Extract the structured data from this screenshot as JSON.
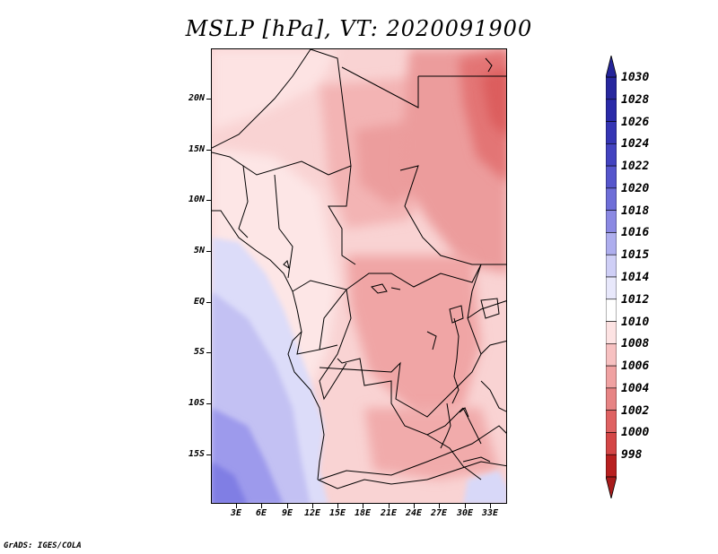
{
  "title": "MSLP [hPa], VT: 2020091900",
  "credit": "GrADS: IGES/COLA",
  "y_axis": [
    {
      "label": "20N",
      "lat": 20
    },
    {
      "label": "15N",
      "lat": 15
    },
    {
      "label": "10N",
      "lat": 10
    },
    {
      "label": "5N",
      "lat": 5
    },
    {
      "label": "EQ",
      "lat": 0
    },
    {
      "label": "5S",
      "lat": -5
    },
    {
      "label": "10S",
      "lat": -10
    },
    {
      "label": "15S",
      "lat": -15
    }
  ],
  "x_axis": [
    {
      "label": "3E",
      "lon": 3
    },
    {
      "label": "6E",
      "lon": 6
    },
    {
      "label": "9E",
      "lon": 9
    },
    {
      "label": "12E",
      "lon": 12
    },
    {
      "label": "15E",
      "lon": 15
    },
    {
      "label": "18E",
      "lon": 18
    },
    {
      "label": "21E",
      "lon": 21
    },
    {
      "label": "24E",
      "lon": 24
    },
    {
      "label": "27E",
      "lon": 27
    },
    {
      "label": "30E",
      "lon": 30
    },
    {
      "label": "33E",
      "lon": 33
    }
  ],
  "colorbar": [
    {
      "label": "1030",
      "color": "#27279e"
    },
    {
      "label": "1028",
      "color": "#2a2aa8"
    },
    {
      "label": "1026",
      "color": "#3535b4"
    },
    {
      "label": "1024",
      "color": "#4343c0"
    },
    {
      "label": "1022",
      "color": "#5656cc"
    },
    {
      "label": "1020",
      "color": "#6e6ed8"
    },
    {
      "label": "1018",
      "color": "#8b89e3"
    },
    {
      "label": "1016",
      "color": "#aeaeee"
    },
    {
      "label": "1015",
      "color": "#cfcff6"
    },
    {
      "label": "1014",
      "color": "#e8e8fb"
    },
    {
      "label": "1012",
      "color": "#ffffff"
    },
    {
      "label": "1010",
      "color": "#fde3e3"
    },
    {
      "label": "1008",
      "color": "#f7c1c1"
    },
    {
      "label": "1006",
      "color": "#f0a2a2"
    },
    {
      "label": "1004",
      "color": "#e78484"
    },
    {
      "label": "1002",
      "color": "#df6262"
    },
    {
      "label": "1000",
      "color": "#d44646"
    },
    {
      "label": "998",
      "color": "#b82020"
    }
  ],
  "colorbar_end_colors": {
    "top": "#24249a",
    "bottom": "#a81b1b"
  }
}
